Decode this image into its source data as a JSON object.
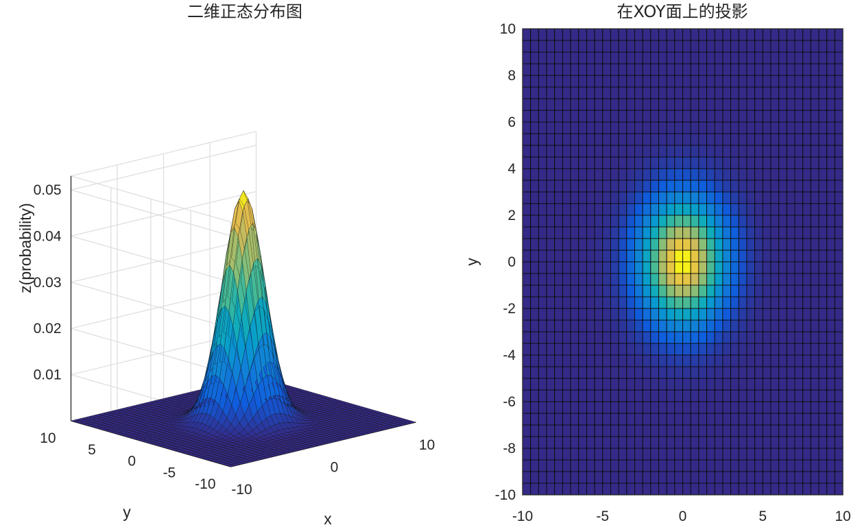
{
  "chart_data": [
    {
      "type": "surface",
      "title": "二维正态分布图",
      "xlabel": "x",
      "ylabel": "y",
      "zlabel": "z(probability)",
      "xlim": [
        -10,
        10
      ],
      "ylim": [
        -10,
        10
      ],
      "zlim": [
        0,
        0.05
      ],
      "grid": true,
      "colormap": "parula",
      "distribution": {
        "mu_x": 0,
        "mu_y": 0,
        "sigma_x": 1.75,
        "sigma_y": 1.75,
        "peak": 0.05
      },
      "mesh_step": 0.5,
      "x_ticks": [
        "-10",
        "0",
        "10"
      ],
      "y_ticks": [
        "-10",
        "-5",
        "0",
        "5",
        "10"
      ],
      "z_ticks": [
        "0.01",
        "0.02",
        "0.03",
        "0.04",
        "0.05"
      ]
    },
    {
      "type": "heatmap",
      "view": "top",
      "title": "在XOY面上的投影",
      "xlabel": "",
      "ylabel": "y",
      "xlim": [
        -10,
        10
      ],
      "ylim": [
        -10,
        10
      ],
      "colormap": "parula",
      "distribution": {
        "mu_x": 0,
        "mu_y": 0,
        "sigma_x": 1.75,
        "sigma_y": 1.75,
        "peak": 0.05
      },
      "mesh_step": 0.5,
      "x_ticks": [
        "-10",
        "-5",
        "0",
        "5",
        "10"
      ],
      "y_ticks": [
        "10",
        "8",
        "6",
        "4",
        "2",
        "0",
        "-2",
        "-4",
        "-6",
        "-8",
        "-10"
      ]
    }
  ]
}
